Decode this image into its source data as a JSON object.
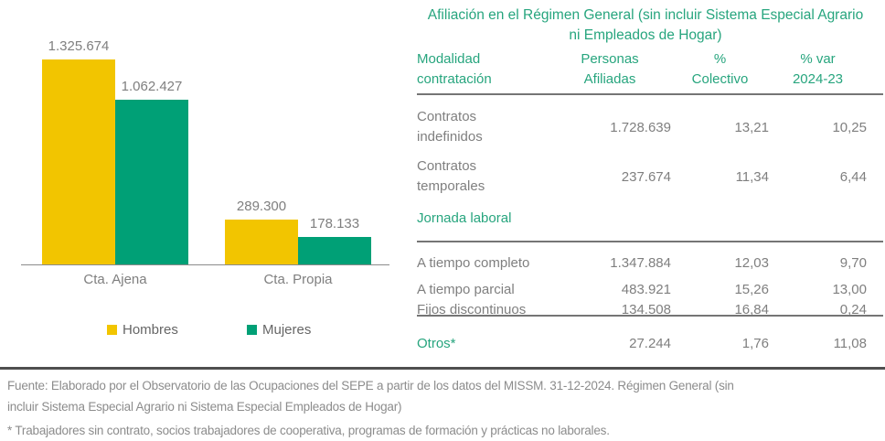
{
  "chart_data": [
    {
      "type": "bar",
      "categories": [
        "Cta. Ajena",
        "Cta. Propia"
      ],
      "series": [
        {
          "name": "Hombres",
          "color": "#F2C500",
          "values": [
            1325674,
            289300
          ],
          "labels": [
            "1.325.674",
            "289.300"
          ]
        },
        {
          "name": "Mujeres",
          "color": "#00A076",
          "values": [
            1062427,
            178133
          ],
          "labels": [
            "1.062.427",
            "178.133"
          ]
        }
      ],
      "ylim": [
        0,
        1400000
      ],
      "grid": false,
      "legend_position": "bottom",
      "title": "",
      "xlabel": "",
      "ylabel": ""
    },
    {
      "type": "table",
      "title": "Afiliación en el Régimen General (sin incluir Sistema Especial Agrario ni Empleados de Hogar)",
      "columns": [
        "Modalidad contratación",
        "Personas Afiliadas",
        "% Colectivo",
        "% var 2024-23"
      ],
      "rows": [
        [
          "Contratos indefinidos",
          "1.728.639",
          "13,21",
          "10,25"
        ],
        [
          "Contratos temporales",
          "237.674",
          "11,34",
          "6,44"
        ],
        [
          "Jornada laboral",
          "",
          "",
          ""
        ],
        [
          "A tiempo completo",
          "1.347.884",
          "12,03",
          "9,70"
        ],
        [
          "A tiempo parcial",
          "483.921",
          "15,26",
          "13,00"
        ],
        [
          "Fijos discontinuos",
          "134.508",
          "16,84",
          "0,24"
        ],
        [
          "Otros*",
          "27.244",
          "1,76",
          "11,08"
        ]
      ]
    }
  ],
  "table": {
    "title": "Afiliación en el Régimen General (sin incluir Sistema Especial Agrario ni Empleados de Hogar)",
    "headers": [
      {
        "line1": "Modalidad",
        "line2": "contratación"
      },
      {
        "line1": "Personas",
        "line2": "Afiliadas"
      },
      {
        "line1": "%",
        "line2": "Colectivo"
      },
      {
        "line1": "% var",
        "line2": "2024-23"
      }
    ],
    "section_label": "Jornada laboral",
    "rows": [
      {
        "label": "Contratos indefinidos",
        "personas": "1.728.639",
        "colectivo": "13,21",
        "var": "10,25"
      },
      {
        "label": "Contratos temporales",
        "personas": "237.674",
        "colectivo": "11,34",
        "var": "6,44"
      },
      {
        "label": "A tiempo completo",
        "personas": "1.347.884",
        "colectivo": "12,03",
        "var": "9,70"
      },
      {
        "label": "A tiempo parcial",
        "personas": "483.921",
        "colectivo": "15,26",
        "var": "13,00"
      },
      {
        "label": "Fijos discontinuos",
        "personas": "134.508",
        "colectivo": "16,84",
        "var": "0,24"
      },
      {
        "label": "Otros*",
        "personas": "27.244",
        "colectivo": "1,76",
        "var": "11,08"
      }
    ]
  },
  "footer": {
    "source_lines": [
      "Fuente: Elaborado por el Observatorio de las Ocupaciones del SEPE a partir de los datos del MISSM. 31-12-2024. Régimen General (sin",
      "incluir Sistema Especial Agrario ni Sistema Especial Empleados de Hogar)"
    ],
    "note": "* Trabajadores sin contrato, socios trabajadores de cooperativa, programas de formación y prácticas no laborales."
  },
  "colors": {
    "accent_green": "#27A57E",
    "bar_yellow": "#F2C500",
    "bar_green": "#00A076",
    "body_gray": "#7F7F7F",
    "rule_dark": "#4F4F4F"
  }
}
